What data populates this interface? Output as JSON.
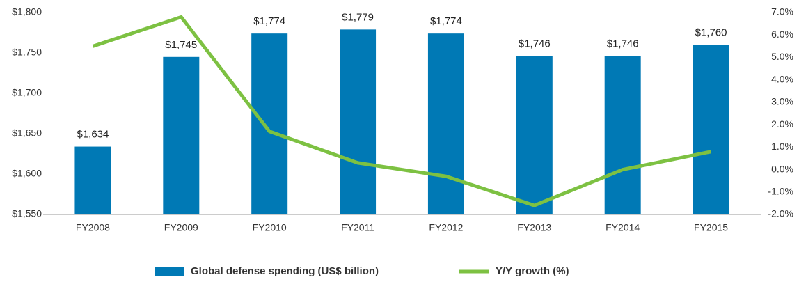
{
  "chart_data": {
    "type": "bar",
    "categories": [
      "FY2008",
      "FY2009",
      "FY2010",
      "FY2011",
      "FY2012",
      "FY2013",
      "FY2014",
      "FY2015"
    ],
    "series": [
      {
        "name": "Global defense spending (US$ billion)",
        "type": "bar",
        "color": "#0079b5",
        "values": [
          1634,
          1745,
          1774,
          1779,
          1774,
          1746,
          1746,
          1760
        ],
        "value_labels": [
          "$1,634",
          "$1,745",
          "$1,774",
          "$1,779",
          "$1,774",
          "$1,746",
          "$1,746",
          "$1,760"
        ]
      },
      {
        "name": "Y/Y growth (%)",
        "type": "line",
        "axis": "y2",
        "color": "#7dc142",
        "values": [
          5.5,
          6.8,
          1.7,
          0.3,
          -0.3,
          -1.6,
          0.0,
          0.8
        ]
      }
    ],
    "ylim": [
      1550,
      1800
    ],
    "yticks": [
      {
        "value": 1550,
        "label": "$1,550"
      },
      {
        "value": 1600,
        "label": "$1,600"
      },
      {
        "value": 1650,
        "label": "$1,650"
      },
      {
        "value": 1700,
        "label": "$1,700"
      },
      {
        "value": 1750,
        "label": "$1,750"
      },
      {
        "value": 1800,
        "label": "$1,800"
      }
    ],
    "y2lim": [
      -2,
      7
    ],
    "y2ticks": [
      {
        "value": -2,
        "label": "-2.0%"
      },
      {
        "value": -1,
        "label": "-1.0%"
      },
      {
        "value": 0,
        "label": "0.0%"
      },
      {
        "value": 1,
        "label": "1.0%"
      },
      {
        "value": 2,
        "label": "2.0%"
      },
      {
        "value": 3,
        "label": "3.0%"
      },
      {
        "value": 4,
        "label": "4.0%"
      },
      {
        "value": 5,
        "label": "5.0%"
      },
      {
        "value": 6,
        "label": "6.0%"
      },
      {
        "value": 7,
        "label": "7.0%"
      }
    ],
    "legend": "bottom"
  }
}
